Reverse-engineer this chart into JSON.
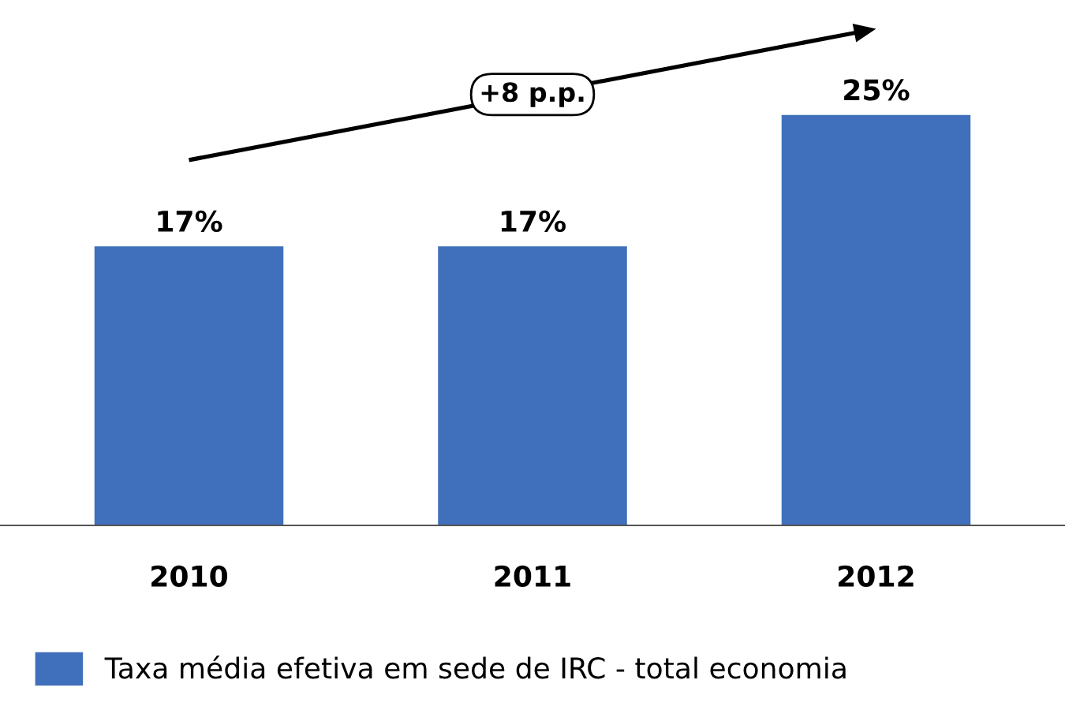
{
  "chart_data": {
    "type": "bar",
    "categories": [
      "2010",
      "2011",
      "2012"
    ],
    "series": [
      {
        "name": "Taxa média efetiva em sede de IRC - total economia",
        "color": "#4070bb",
        "values": [
          17,
          17,
          25
        ],
        "value_labels": [
          "17%",
          "17%",
          "25%"
        ]
      }
    ],
    "annotations": [
      "+8 p.p."
    ],
    "legend": "bottom",
    "grid": false
  }
}
